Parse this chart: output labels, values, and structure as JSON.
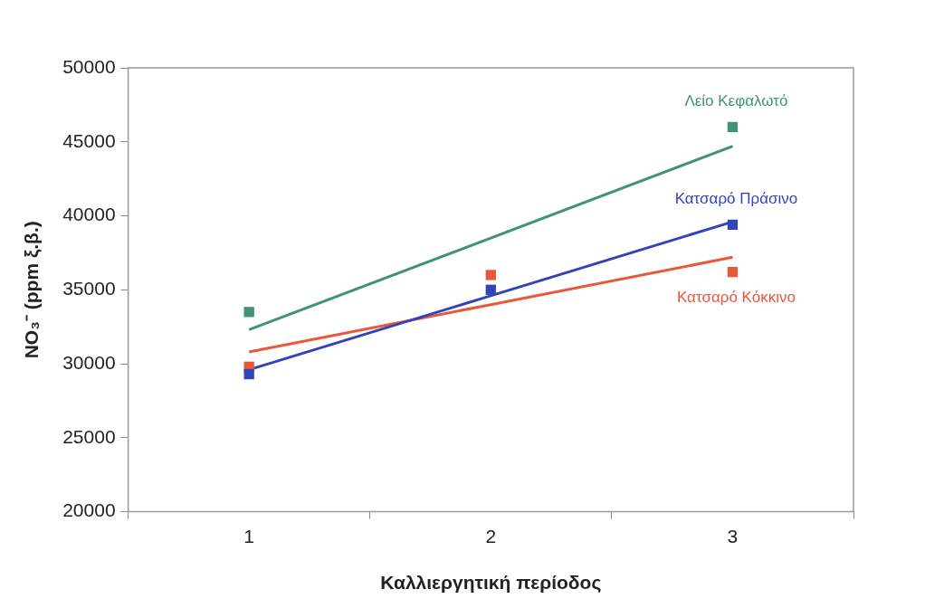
{
  "chart_data": {
    "type": "scatter",
    "xlabel": "Καλλιεργητική περίοδος",
    "ylabel": "NO₃⁻ (ppm ξ.β.)",
    "categories": [
      "1",
      "2",
      "3"
    ],
    "ylim": [
      20000,
      50000
    ],
    "yticks": [
      20000,
      25000,
      30000,
      35000,
      40000,
      45000,
      50000
    ],
    "grid": false,
    "legend": false,
    "series": [
      {
        "name": "Λείο Κεφαλωτό",
        "marker": "square",
        "color": "#3f9474",
        "values": [
          33500,
          null,
          46000
        ]
      },
      {
        "name": "Κατσαρό Πράσινο",
        "marker": "square",
        "color": "#3344bb",
        "values": [
          29300,
          35000,
          39400
        ]
      },
      {
        "name": "Κατσαρό Κόκκινο",
        "marker": "square",
        "color": "#e8593a",
        "values": [
          29800,
          36000,
          36200
        ]
      },
      {
        "type": "line",
        "marker": "none",
        "color": "#3f9474",
        "values": [
          32300,
          38500,
          44700
        ]
      },
      {
        "type": "line",
        "marker": "none",
        "color": "#3344bb",
        "values": [
          29600,
          34600,
          39600
        ]
      },
      {
        "type": "line",
        "marker": "none",
        "color": "#e8593a",
        "values": [
          30800,
          34000,
          37200
        ]
      }
    ]
  }
}
